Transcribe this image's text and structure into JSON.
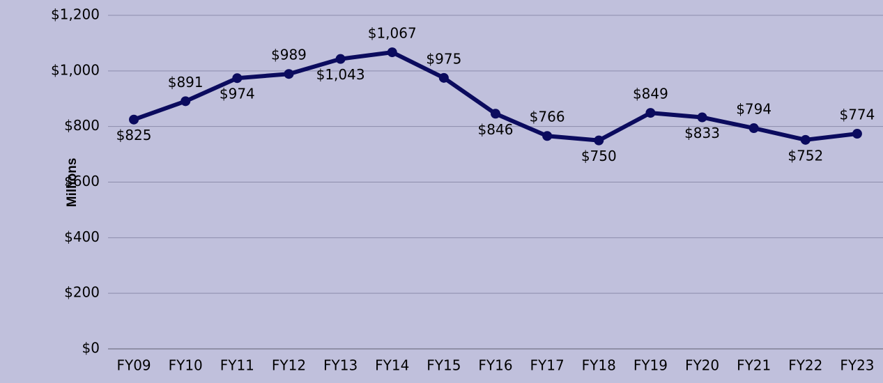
{
  "chart_data": {
    "type": "line",
    "y_axis_label": "Millions",
    "categories": [
      "FY09",
      "FY10",
      "FY11",
      "FY12",
      "FY13",
      "FY14",
      "FY15",
      "FY16",
      "FY17",
      "FY18",
      "FY19",
      "FY20",
      "FY21",
      "FY22",
      "FY23"
    ],
    "series": [
      {
        "name": "Millions",
        "color": "#0b0b5e",
        "values": [
          825,
          891,
          974,
          989,
          1043,
          1067,
          975,
          846,
          766,
          750,
          849,
          833,
          794,
          752,
          774
        ],
        "value_labels": [
          "$825",
          "$891",
          "$974",
          "$989",
          "$1,043",
          "$1,067",
          "$975",
          "$846",
          "$766",
          "$750",
          "$849",
          "$833",
          "$794",
          "$752",
          "$774"
        ]
      }
    ],
    "ylim": [
      0,
      1200
    ],
    "yticks": [
      {
        "value": 0,
        "label": "$0"
      },
      {
        "value": 200,
        "label": "$200"
      },
      {
        "value": 400,
        "label": "$400"
      },
      {
        "value": 600,
        "label": "$600"
      },
      {
        "value": 800,
        "label": "$800"
      },
      {
        "value": 1000,
        "label": "$1,000"
      },
      {
        "value": 1200,
        "label": "$1,200"
      }
    ],
    "grid": true
  }
}
